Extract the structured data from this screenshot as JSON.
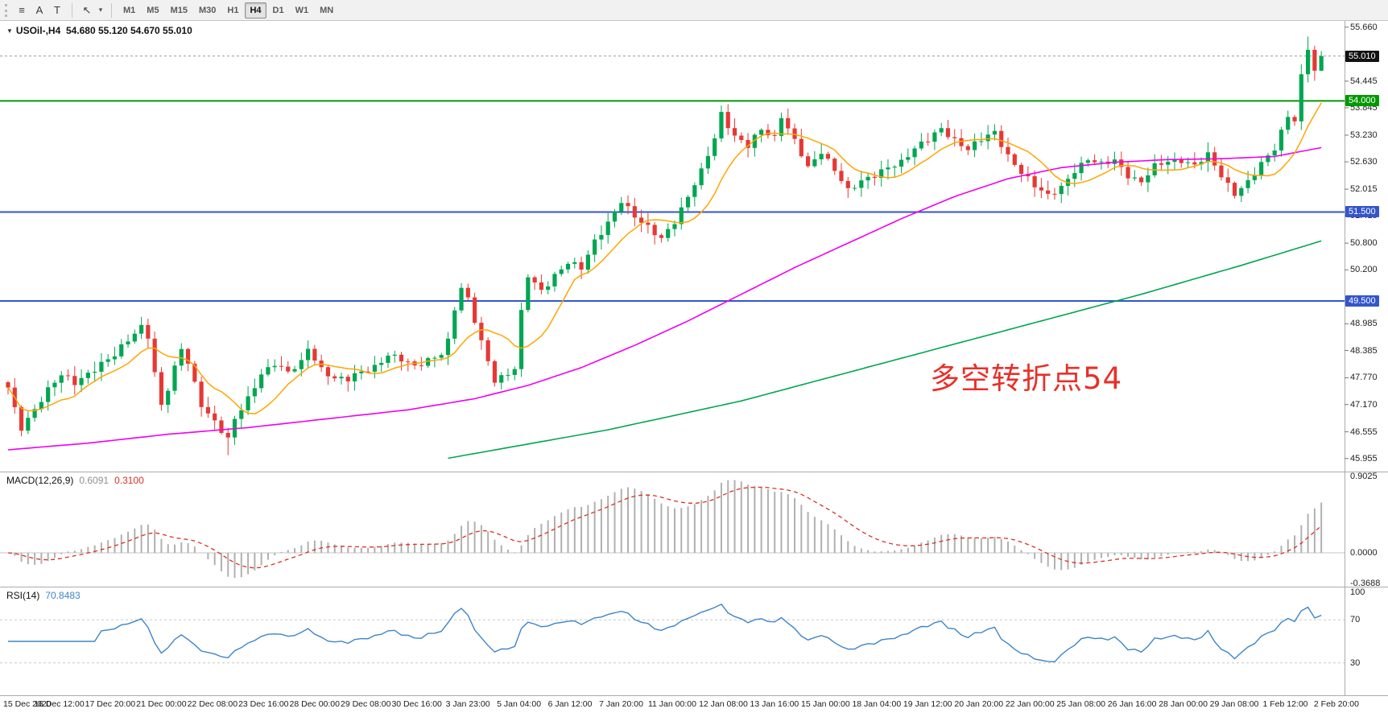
{
  "toolbar": {
    "icons": [
      {
        "name": "chart-lines-icon",
        "glyph": "≡"
      },
      {
        "name": "text-icon",
        "glyph": "A"
      },
      {
        "name": "textbox-icon",
        "glyph": "T"
      },
      {
        "name": "arrow-tool-icon",
        "glyph": "↖"
      },
      {
        "name": "chevron-down-icon",
        "glyph": "▾"
      }
    ],
    "timeframes": [
      "M1",
      "M5",
      "M15",
      "M30",
      "H1",
      "H4",
      "D1",
      "W1",
      "MN"
    ],
    "active_timeframe": "H4"
  },
  "chart": {
    "marker": "▼",
    "symbol_timeframe": "USOil-,H4",
    "ohlc": "54.680 55.120 54.670 55.010",
    "annotation": "多空转折点54",
    "axis_values": [
      "55.660",
      "54.445",
      "53.845",
      "53.230",
      "52.630",
      "52.015",
      "51.415",
      "50.800",
      "50.200",
      "48.985",
      "48.385",
      "47.770",
      "47.170",
      "46.555",
      "45.955"
    ],
    "badges": {
      "current_price": "55.010",
      "level_green": "54.000",
      "level_blue_upper": "51.500",
      "level_blue_lower": "49.500"
    }
  },
  "macd": {
    "label": "MACD(12,26,9)",
    "value_main": "0.6091",
    "value_signal": "0.3100",
    "axis": [
      "0.9025",
      "0.0000",
      "-0.3688"
    ]
  },
  "rsi": {
    "label": "RSI(14)",
    "value": "70.8483",
    "axis": [
      "100",
      "70",
      "30"
    ]
  },
  "time_axis": [
    "15 Dec 2020",
    "16 Dec 12:00",
    "17 Dec 20:00",
    "21 Dec 00:00",
    "22 Dec 08:00",
    "23 Dec 16:00",
    "28 Dec 00:00",
    "29 Dec 08:00",
    "30 Dec 16:00",
    "3 Jan 23:00",
    "5 Jan 04:00",
    "6 Jan 12:00",
    "7 Jan 20:00",
    "11 Jan 00:00",
    "12 Jan 08:00",
    "13 Jan 16:00",
    "15 Jan 00:00",
    "18 Jan 04:00",
    "19 Jan 12:00",
    "20 Jan 20:00",
    "22 Jan 00:00",
    "25 Jan 08:00",
    "26 Jan 16:00",
    "28 Jan 00:00",
    "29 Jan 08:00",
    "1 Feb 12:00",
    "2 Feb 20:00"
  ],
  "colors": {
    "candle_up": "#00a651",
    "candle_down": "#e53935",
    "ma_fast": "#ffa500",
    "ma_mid": "#f000f0",
    "ma_slow": "#00a651",
    "hline_green": "#009900",
    "hline_blue": "#3355cc",
    "current_price_line": "#999999",
    "badge_current_bg": "#111111",
    "macd_hist": "#b0b0b0",
    "macd_signal": "#d93025",
    "rsi_line": "#3d85c8",
    "grid": "#ababab",
    "level_dash": "#c8c8c8"
  },
  "chart_data": {
    "type": "candlestick",
    "symbol": "USOil-",
    "timeframe": "H4",
    "bars": 198,
    "price_axis_range": [
      45.955,
      55.66
    ],
    "current_price": 55.01,
    "last_bar_ohlc": {
      "open": 54.68,
      "high": 55.12,
      "low": 54.67,
      "close": 55.01
    },
    "hlines": [
      {
        "price": 54.0,
        "color_key": "hline_green",
        "label": "54.000"
      },
      {
        "price": 51.5,
        "color_key": "hline_blue",
        "label": "51.500"
      },
      {
        "price": 49.5,
        "color_key": "hline_blue",
        "label": "49.500"
      }
    ],
    "close_anchors": [
      [
        0,
        47.55
      ],
      [
        1,
        47.05
      ],
      [
        2,
        46.65
      ],
      [
        4,
        47.1
      ],
      [
        6,
        47.5
      ],
      [
        8,
        47.8
      ],
      [
        10,
        47.65
      ],
      [
        12,
        47.9
      ],
      [
        14,
        48.1
      ],
      [
        16,
        48.25
      ],
      [
        18,
        48.6
      ],
      [
        20,
        48.95
      ],
      [
        21,
        48.75
      ],
      [
        22,
        47.9
      ],
      [
        23,
        47.15
      ],
      [
        24,
        47.5
      ],
      [
        26,
        48.4
      ],
      [
        27,
        48.1
      ],
      [
        29,
        47.2
      ],
      [
        31,
        46.8
      ],
      [
        33,
        46.35
      ],
      [
        34,
        46.8
      ],
      [
        36,
        47.3
      ],
      [
        38,
        47.9
      ],
      [
        40,
        48.1
      ],
      [
        42,
        47.85
      ],
      [
        44,
        48.1
      ],
      [
        45,
        48.45
      ],
      [
        47,
        48.0
      ],
      [
        49,
        47.75
      ],
      [
        51,
        47.7
      ],
      [
        53,
        47.9
      ],
      [
        55,
        48.05
      ],
      [
        57,
        48.3
      ],
      [
        59,
        48.15
      ],
      [
        61,
        48.0
      ],
      [
        63,
        48.2
      ],
      [
        65,
        48.35
      ],
      [
        66,
        48.6
      ],
      [
        67,
        49.3
      ],
      [
        68,
        49.75
      ],
      [
        69,
        49.5
      ],
      [
        71,
        48.6
      ],
      [
        73,
        47.75
      ],
      [
        75,
        47.85
      ],
      [
        76,
        47.95
      ],
      [
        77,
        49.2
      ],
      [
        78,
        50.05
      ],
      [
        80,
        49.75
      ],
      [
        82,
        50.1
      ],
      [
        84,
        50.35
      ],
      [
        86,
        50.2
      ],
      [
        88,
        50.85
      ],
      [
        90,
        51.3
      ],
      [
        92,
        51.75
      ],
      [
        94,
        51.35
      ],
      [
        96,
        51.15
      ],
      [
        98,
        50.95
      ],
      [
        100,
        51.3
      ],
      [
        102,
        51.8
      ],
      [
        104,
        52.4
      ],
      [
        106,
        53.2
      ],
      [
        107,
        53.75
      ],
      [
        109,
        53.2
      ],
      [
        111,
        52.95
      ],
      [
        113,
        53.35
      ],
      [
        115,
        53.2
      ],
      [
        116,
        53.7
      ],
      [
        118,
        53.1
      ],
      [
        120,
        52.45
      ],
      [
        122,
        52.85
      ],
      [
        124,
        52.5
      ],
      [
        126,
        52.0
      ],
      [
        128,
        52.15
      ],
      [
        130,
        52.3
      ],
      [
        132,
        52.55
      ],
      [
        134,
        52.65
      ],
      [
        136,
        52.9
      ],
      [
        138,
        53.1
      ],
      [
        140,
        53.4
      ],
      [
        142,
        53.15
      ],
      [
        144,
        52.9
      ],
      [
        146,
        53.1
      ],
      [
        148,
        53.3
      ],
      [
        150,
        52.8
      ],
      [
        152,
        52.4
      ],
      [
        154,
        52.05
      ],
      [
        156,
        51.85
      ],
      [
        158,
        52.1
      ],
      [
        160,
        52.45
      ],
      [
        162,
        52.65
      ],
      [
        164,
        52.55
      ],
      [
        166,
        52.7
      ],
      [
        168,
        52.35
      ],
      [
        170,
        52.15
      ],
      [
        172,
        52.5
      ],
      [
        174,
        52.65
      ],
      [
        176,
        52.7
      ],
      [
        178,
        52.55
      ],
      [
        180,
        52.75
      ],
      [
        182,
        52.3
      ],
      [
        184,
        51.95
      ],
      [
        186,
        52.2
      ],
      [
        188,
        52.55
      ],
      [
        190,
        52.9
      ],
      [
        191,
        53.3
      ],
      [
        192,
        53.7
      ],
      [
        193,
        53.6
      ],
      [
        194,
        54.6
      ],
      [
        195,
        55.15
      ],
      [
        196,
        54.68
      ],
      [
        197,
        55.01
      ]
    ],
    "pinned_closes": {
      "0": 47.55,
      "194": 54.6,
      "195": 55.15,
      "196": 54.68,
      "197": 55.01
    },
    "ma_mid_anchors": [
      [
        0,
        46.15
      ],
      [
        12,
        46.3
      ],
      [
        24,
        46.5
      ],
      [
        36,
        46.65
      ],
      [
        48,
        46.85
      ],
      [
        60,
        47.05
      ],
      [
        70,
        47.3
      ],
      [
        78,
        47.6
      ],
      [
        86,
        48.0
      ],
      [
        94,
        48.5
      ],
      [
        102,
        49.05
      ],
      [
        110,
        49.65
      ],
      [
        118,
        50.25
      ],
      [
        126,
        50.8
      ],
      [
        134,
        51.35
      ],
      [
        142,
        51.85
      ],
      [
        150,
        52.25
      ],
      [
        158,
        52.5
      ],
      [
        166,
        52.62
      ],
      [
        174,
        52.68
      ],
      [
        182,
        52.7
      ],
      [
        190,
        52.75
      ],
      [
        197,
        52.95
      ]
    ],
    "ma_slow_anchors": [
      [
        66,
        45.96
      ],
      [
        90,
        46.6
      ],
      [
        110,
        47.25
      ],
      [
        130,
        48.05
      ],
      [
        150,
        48.85
      ],
      [
        170,
        49.65
      ],
      [
        185,
        50.3
      ],
      [
        197,
        50.85
      ]
    ],
    "macd_display_range": [
      -0.3688,
      0.9025
    ],
    "rsi_levels": [
      30,
      70
    ]
  }
}
